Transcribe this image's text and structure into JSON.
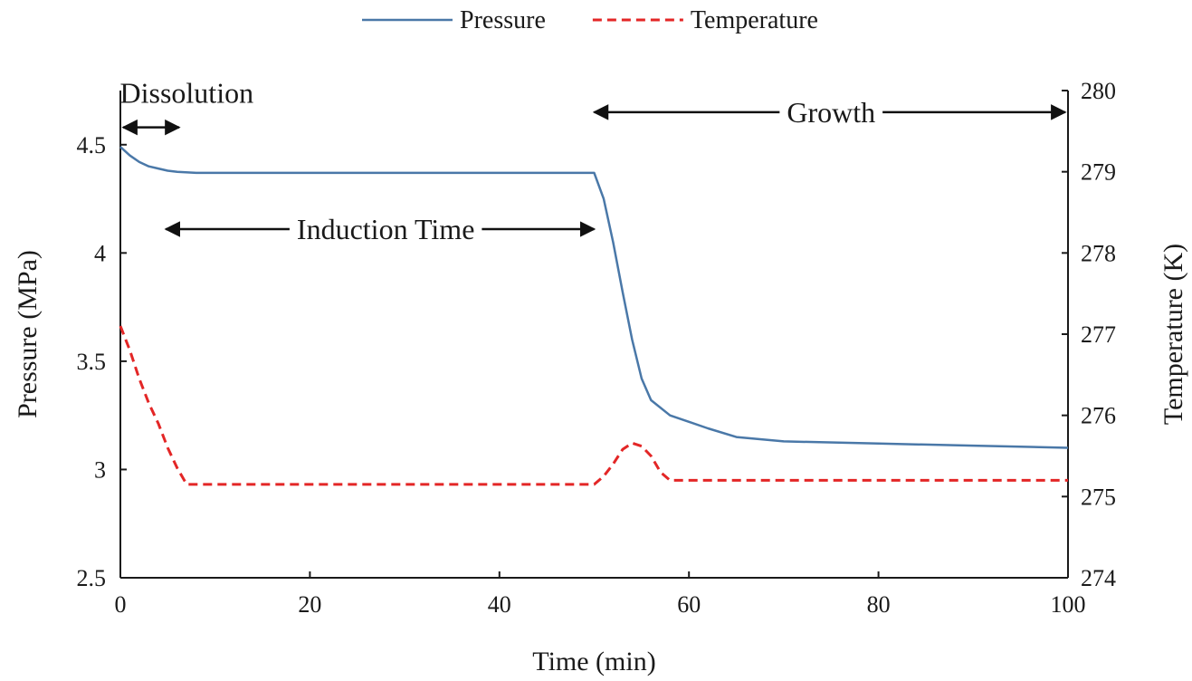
{
  "chart_data": {
    "type": "line",
    "xlabel": "Time (min)",
    "ylabel_left": "Pressure (MPa)",
    "ylabel_right": "Temperature (K)",
    "xlim": [
      0,
      100
    ],
    "ylim_left": [
      2.5,
      4.75
    ],
    "ylim_right": [
      274,
      280
    ],
    "x_ticks": [
      0,
      20,
      40,
      60,
      80,
      100
    ],
    "y_left_ticks": [
      2.5,
      3,
      3.5,
      4,
      4.5
    ],
    "y_right_ticks": [
      274,
      275,
      276,
      277,
      278,
      279,
      280
    ],
    "y_left_tick_labels": [
      "2.5",
      "3",
      "3.5",
      "4",
      "4.5"
    ],
    "grid": false,
    "legend": "top-center",
    "series": [
      {
        "name": "Pressure",
        "axis": "left",
        "color": "#4a78a8",
        "style": "solid",
        "x": [
          0,
          1,
          2,
          3,
          4,
          5,
          6,
          8,
          10,
          15,
          20,
          30,
          40,
          49,
          50,
          51,
          52,
          53,
          54,
          55,
          56,
          58,
          60,
          62,
          65,
          70,
          80,
          90,
          100
        ],
        "y": [
          4.49,
          4.45,
          4.42,
          4.4,
          4.39,
          4.38,
          4.375,
          4.37,
          4.37,
          4.37,
          4.37,
          4.37,
          4.37,
          4.37,
          4.37,
          4.25,
          4.05,
          3.82,
          3.6,
          3.42,
          3.32,
          3.25,
          3.22,
          3.19,
          3.15,
          3.13,
          3.12,
          3.11,
          3.1
        ]
      },
      {
        "name": "Temperature",
        "axis": "right",
        "color": "#e32626",
        "style": "dashed",
        "x": [
          0,
          1,
          2,
          3,
          4,
          5,
          6,
          7,
          10,
          20,
          30,
          40,
          48,
          50,
          51,
          52,
          53,
          54,
          55,
          56,
          57,
          58,
          60,
          70,
          80,
          90,
          100
        ],
        "y": [
          277.1,
          276.8,
          276.45,
          276.15,
          275.9,
          275.6,
          275.35,
          275.15,
          275.15,
          275.15,
          275.15,
          275.15,
          275.15,
          275.15,
          275.25,
          275.4,
          275.58,
          275.66,
          275.62,
          275.5,
          275.3,
          275.2,
          275.2,
          275.2,
          275.2,
          275.2,
          275.2
        ]
      }
    ],
    "annotations": [
      {
        "label": "Dissolution",
        "from": 0.3,
        "to": 6.2,
        "y": 4.58,
        "label_x": 7,
        "label_y": 4.74,
        "label_anchor": "middle"
      },
      {
        "label": "Induction Time",
        "from": 4.8,
        "to": 50,
        "y": 4.11,
        "label_x": 28,
        "label_y": 4.11,
        "label_anchor": "middle"
      },
      {
        "label": "Growth",
        "from": 50,
        "to": 99.7,
        "y": 4.65,
        "label_x": 75,
        "label_y": 4.65,
        "label_anchor": "middle"
      }
    ]
  }
}
